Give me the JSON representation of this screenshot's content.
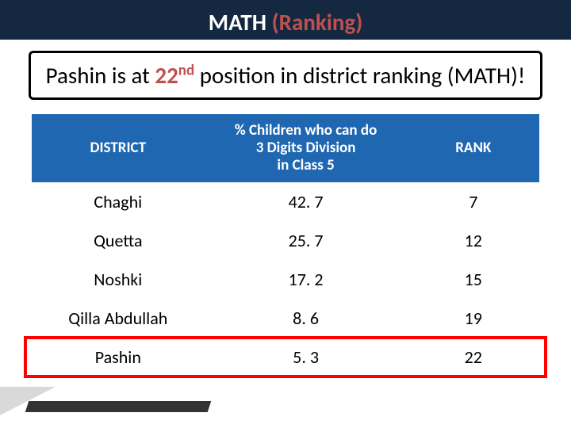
{
  "title": {
    "word1": "MATH",
    "word2": "(Ranking)"
  },
  "subtitle": {
    "prefix": "Pashin is at ",
    "red_num": "22",
    "red_suffix": "nd",
    "rest": " position in district ranking (MATH)!"
  },
  "table": {
    "header_bg": "#2067b2",
    "header_fg": "#ffffff",
    "columns": [
      {
        "label": "DISTRICT",
        "width": "34%"
      },
      {
        "label": "% Children who can do\n3 Digits Division\nin Class 5",
        "width": "40%"
      },
      {
        "label": "RANK",
        "width": "26%"
      }
    ],
    "rows": [
      {
        "district": "Chaghi",
        "value": "42. 7",
        "rank": "7"
      },
      {
        "district": "Quetta",
        "value": "25. 7",
        "rank": "12"
      },
      {
        "district": "Noshki",
        "value": "17. 2",
        "rank": "15"
      },
      {
        "district": "Qilla Abdullah",
        "value": "8. 6",
        "rank": "19"
      },
      {
        "district": "Pashin",
        "value": "5. 3",
        "rank": "22",
        "highlight": true,
        "highlight_color": "#ff0000"
      }
    ],
    "body_fontsize": 22,
    "header_fontsize": 19
  },
  "colors": {
    "title_bar_bg": "#152842",
    "accent_red": "#c0504d",
    "white": "#ffffff",
    "black": "#000000"
  }
}
